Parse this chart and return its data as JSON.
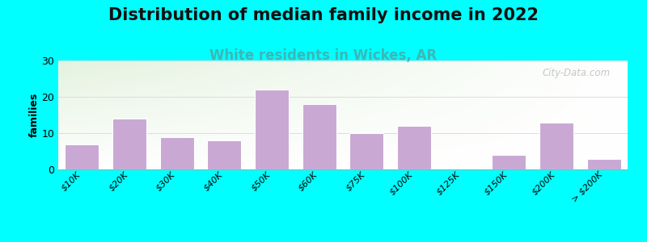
{
  "title": "Distribution of median family income in 2022",
  "subtitle": "White residents in Wickes, AR",
  "ylabel": "families",
  "categories": [
    "$10K",
    "$20K",
    "$30K",
    "$40K",
    "$50K",
    "$60K",
    "$75K",
    "$100K",
    "$125K",
    "$150K",
    "$200K",
    "> $200K"
  ],
  "values": [
    7,
    14,
    9,
    8,
    22,
    18,
    10,
    12,
    0,
    4,
    13,
    3
  ],
  "bar_color": "#c9a8d4",
  "bar_edge_color": "#ffffff",
  "background_outer": "#00ffff",
  "ylim": [
    0,
    30
  ],
  "yticks": [
    0,
    10,
    20,
    30
  ],
  "title_fontsize": 15,
  "subtitle_fontsize": 12,
  "subtitle_color": "#3ab8b8",
  "watermark": "City-Data.com",
  "grid_color": "#dddddd"
}
